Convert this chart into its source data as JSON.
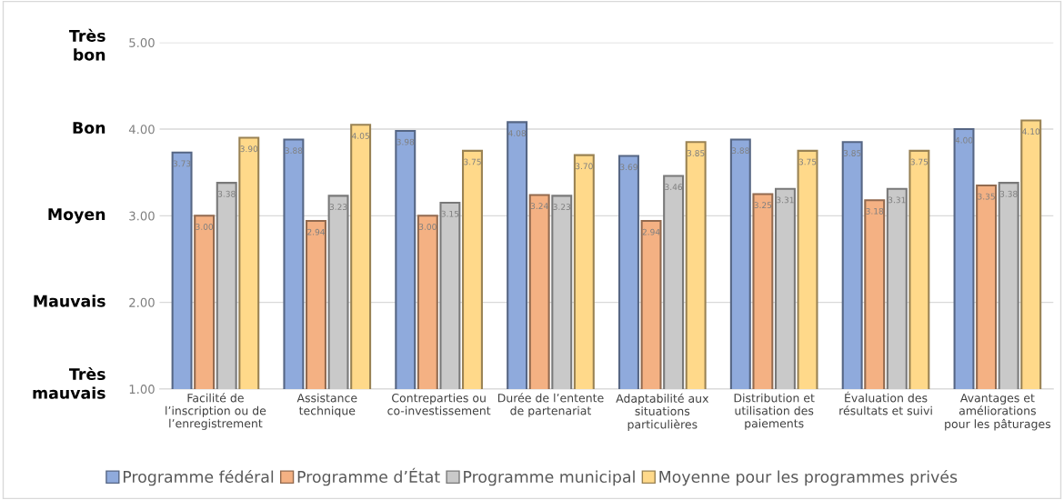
{
  "chart_data": {
    "type": "bar",
    "categories": [
      "Facilité de\nl’inscription ou de\nl’enregistrement",
      "Assistance\ntechnique",
      "Contreparties ou\nco-investissement",
      "Durée de l’entente\nde partenariat",
      "Adaptabilité aux\nsituations\nparticulières",
      "Distribution et\nutilisation des\npaiements",
      "Évaluation des\nrésultats et suivi",
      "Avantages et\naméliorations\npour les pâturages"
    ],
    "series": [
      {
        "name": "Programme fédéral",
        "color": "#8faadc",
        "values": [
          3.73,
          3.88,
          3.98,
          4.08,
          3.69,
          3.88,
          3.85,
          4.0
        ],
        "value_labels": [
          "3.73",
          "3.88",
          "3.98",
          "4.08",
          "3.69",
          "3.88",
          "3.85",
          "4.00"
        ]
      },
      {
        "name": "Programme d’État",
        "color": "#f4b183",
        "values": [
          3.0,
          2.94,
          3.0,
          3.24,
          2.94,
          3.25,
          3.18,
          3.35
        ],
        "value_labels": [
          "3.00",
          "2.94",
          "3.00",
          "3.24",
          "2.94",
          "3.25",
          "3.18",
          "3.35"
        ]
      },
      {
        "name": "Programme municipal",
        "color": "#c9c9c9",
        "values": [
          3.38,
          3.23,
          3.15,
          3.23,
          3.46,
          3.31,
          3.31,
          3.38
        ],
        "value_labels": [
          "3.38",
          "3.23",
          "3.15",
          "3.23",
          "3.46",
          "3.31",
          "3.31",
          "3.38"
        ]
      },
      {
        "name": "Moyenne pour les programmes privés",
        "color": "#ffd98a",
        "values": [
          3.9,
          4.05,
          3.75,
          3.7,
          3.85,
          3.75,
          3.75,
          4.1
        ],
        "value_labels": [
          "3.90",
          "4.05",
          "3.75",
          "3.70",
          "3.85",
          "3.75",
          "3.75",
          "4.10"
        ]
      }
    ],
    "ylim": [
      1,
      5
    ],
    "yticks": [
      {
        "value": 1,
        "label": "1.00"
      },
      {
        "value": 2,
        "label": "2.00"
      },
      {
        "value": 3,
        "label": "3.00"
      },
      {
        "value": 4,
        "label": "4.00"
      },
      {
        "value": 5,
        "label": "5.00"
      }
    ],
    "annotations": [
      "Très\nbon",
      "Bon",
      "Moyen",
      "Mauvais",
      "Très\nmauvais"
    ],
    "grid": "y",
    "legend": "bottom"
  }
}
